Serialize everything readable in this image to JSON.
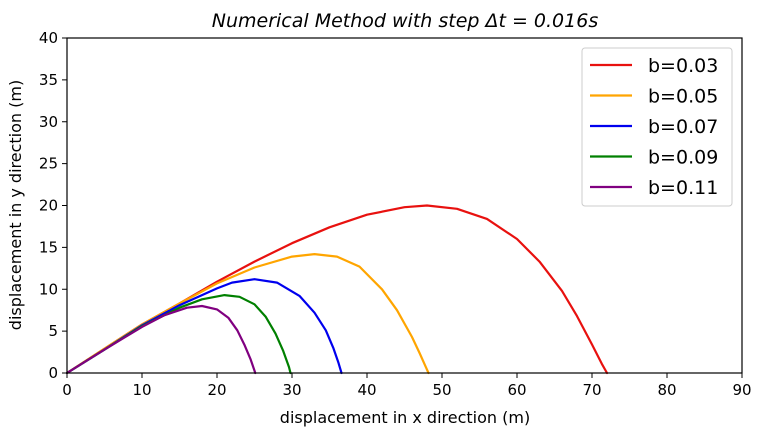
{
  "chart_data": {
    "type": "line",
    "title": "Numerical   Method   with   step   Δt = 0.016s",
    "xlabel": "displacement in x direction (m)",
    "ylabel": "displacement in y direction (m)",
    "xlim": [
      0,
      90
    ],
    "ylim": [
      0,
      40
    ],
    "xticks": [
      "0",
      "10",
      "20",
      "30",
      "40",
      "50",
      "60",
      "70",
      "80",
      "90"
    ],
    "yticks": [
      "0",
      "5",
      "10",
      "15",
      "20",
      "25",
      "30",
      "35",
      "40"
    ],
    "grid": false,
    "legend_position": "top-right",
    "series": [
      {
        "name": "b=0.03",
        "color": "#e8110f",
        "x": [
          0,
          5,
          10,
          15,
          20,
          25,
          30,
          35,
          40,
          45,
          48,
          52,
          56,
          60,
          63,
          66,
          68,
          70,
          71.3,
          72
        ],
        "y": [
          0,
          2.9,
          5.8,
          8.3,
          10.9,
          13.3,
          15.5,
          17.4,
          18.9,
          19.8,
          20.0,
          19.6,
          18.4,
          16.0,
          13.3,
          9.8,
          6.8,
          3.4,
          1.1,
          0
        ]
      },
      {
        "name": "b=0.05",
        "color": "#ffa500",
        "x": [
          0,
          5,
          10,
          15,
          20,
          25,
          30,
          33,
          36,
          39,
          42,
          44,
          46,
          47,
          47.8,
          48.2
        ],
        "y": [
          0,
          2.9,
          5.8,
          8.3,
          10.7,
          12.6,
          13.9,
          14.2,
          13.9,
          12.7,
          10.0,
          7.5,
          4.3,
          2.4,
          0.8,
          0
        ]
      },
      {
        "name": "b=0.07",
        "color": "#0000ee",
        "x": [
          0,
          5,
          10,
          15,
          20,
          22,
          25,
          28,
          31,
          33,
          34.5,
          35.5,
          36.2,
          36.6
        ],
        "y": [
          0,
          2.8,
          5.7,
          8.1,
          10.1,
          10.8,
          11.2,
          10.8,
          9.2,
          7.2,
          5.1,
          3.0,
          1.2,
          0
        ]
      },
      {
        "name": "b=0.09",
        "color": "#008000",
        "x": [
          0,
          5,
          10,
          15,
          18,
          21,
          23,
          25,
          26.5,
          27.8,
          28.8,
          29.6,
          29.8
        ],
        "y": [
          0,
          2.8,
          5.6,
          7.8,
          8.8,
          9.3,
          9.1,
          8.2,
          6.7,
          4.7,
          2.7,
          0.7,
          0
        ]
      },
      {
        "name": "b=0.11",
        "color": "#800080",
        "x": [
          0,
          5,
          10,
          13,
          16,
          18,
          20,
          21.5,
          22.7,
          23.7,
          24.5,
          25.1
        ],
        "y": [
          0,
          2.8,
          5.5,
          6.9,
          7.8,
          8.0,
          7.6,
          6.6,
          5.1,
          3.3,
          1.6,
          0
        ]
      }
    ]
  }
}
